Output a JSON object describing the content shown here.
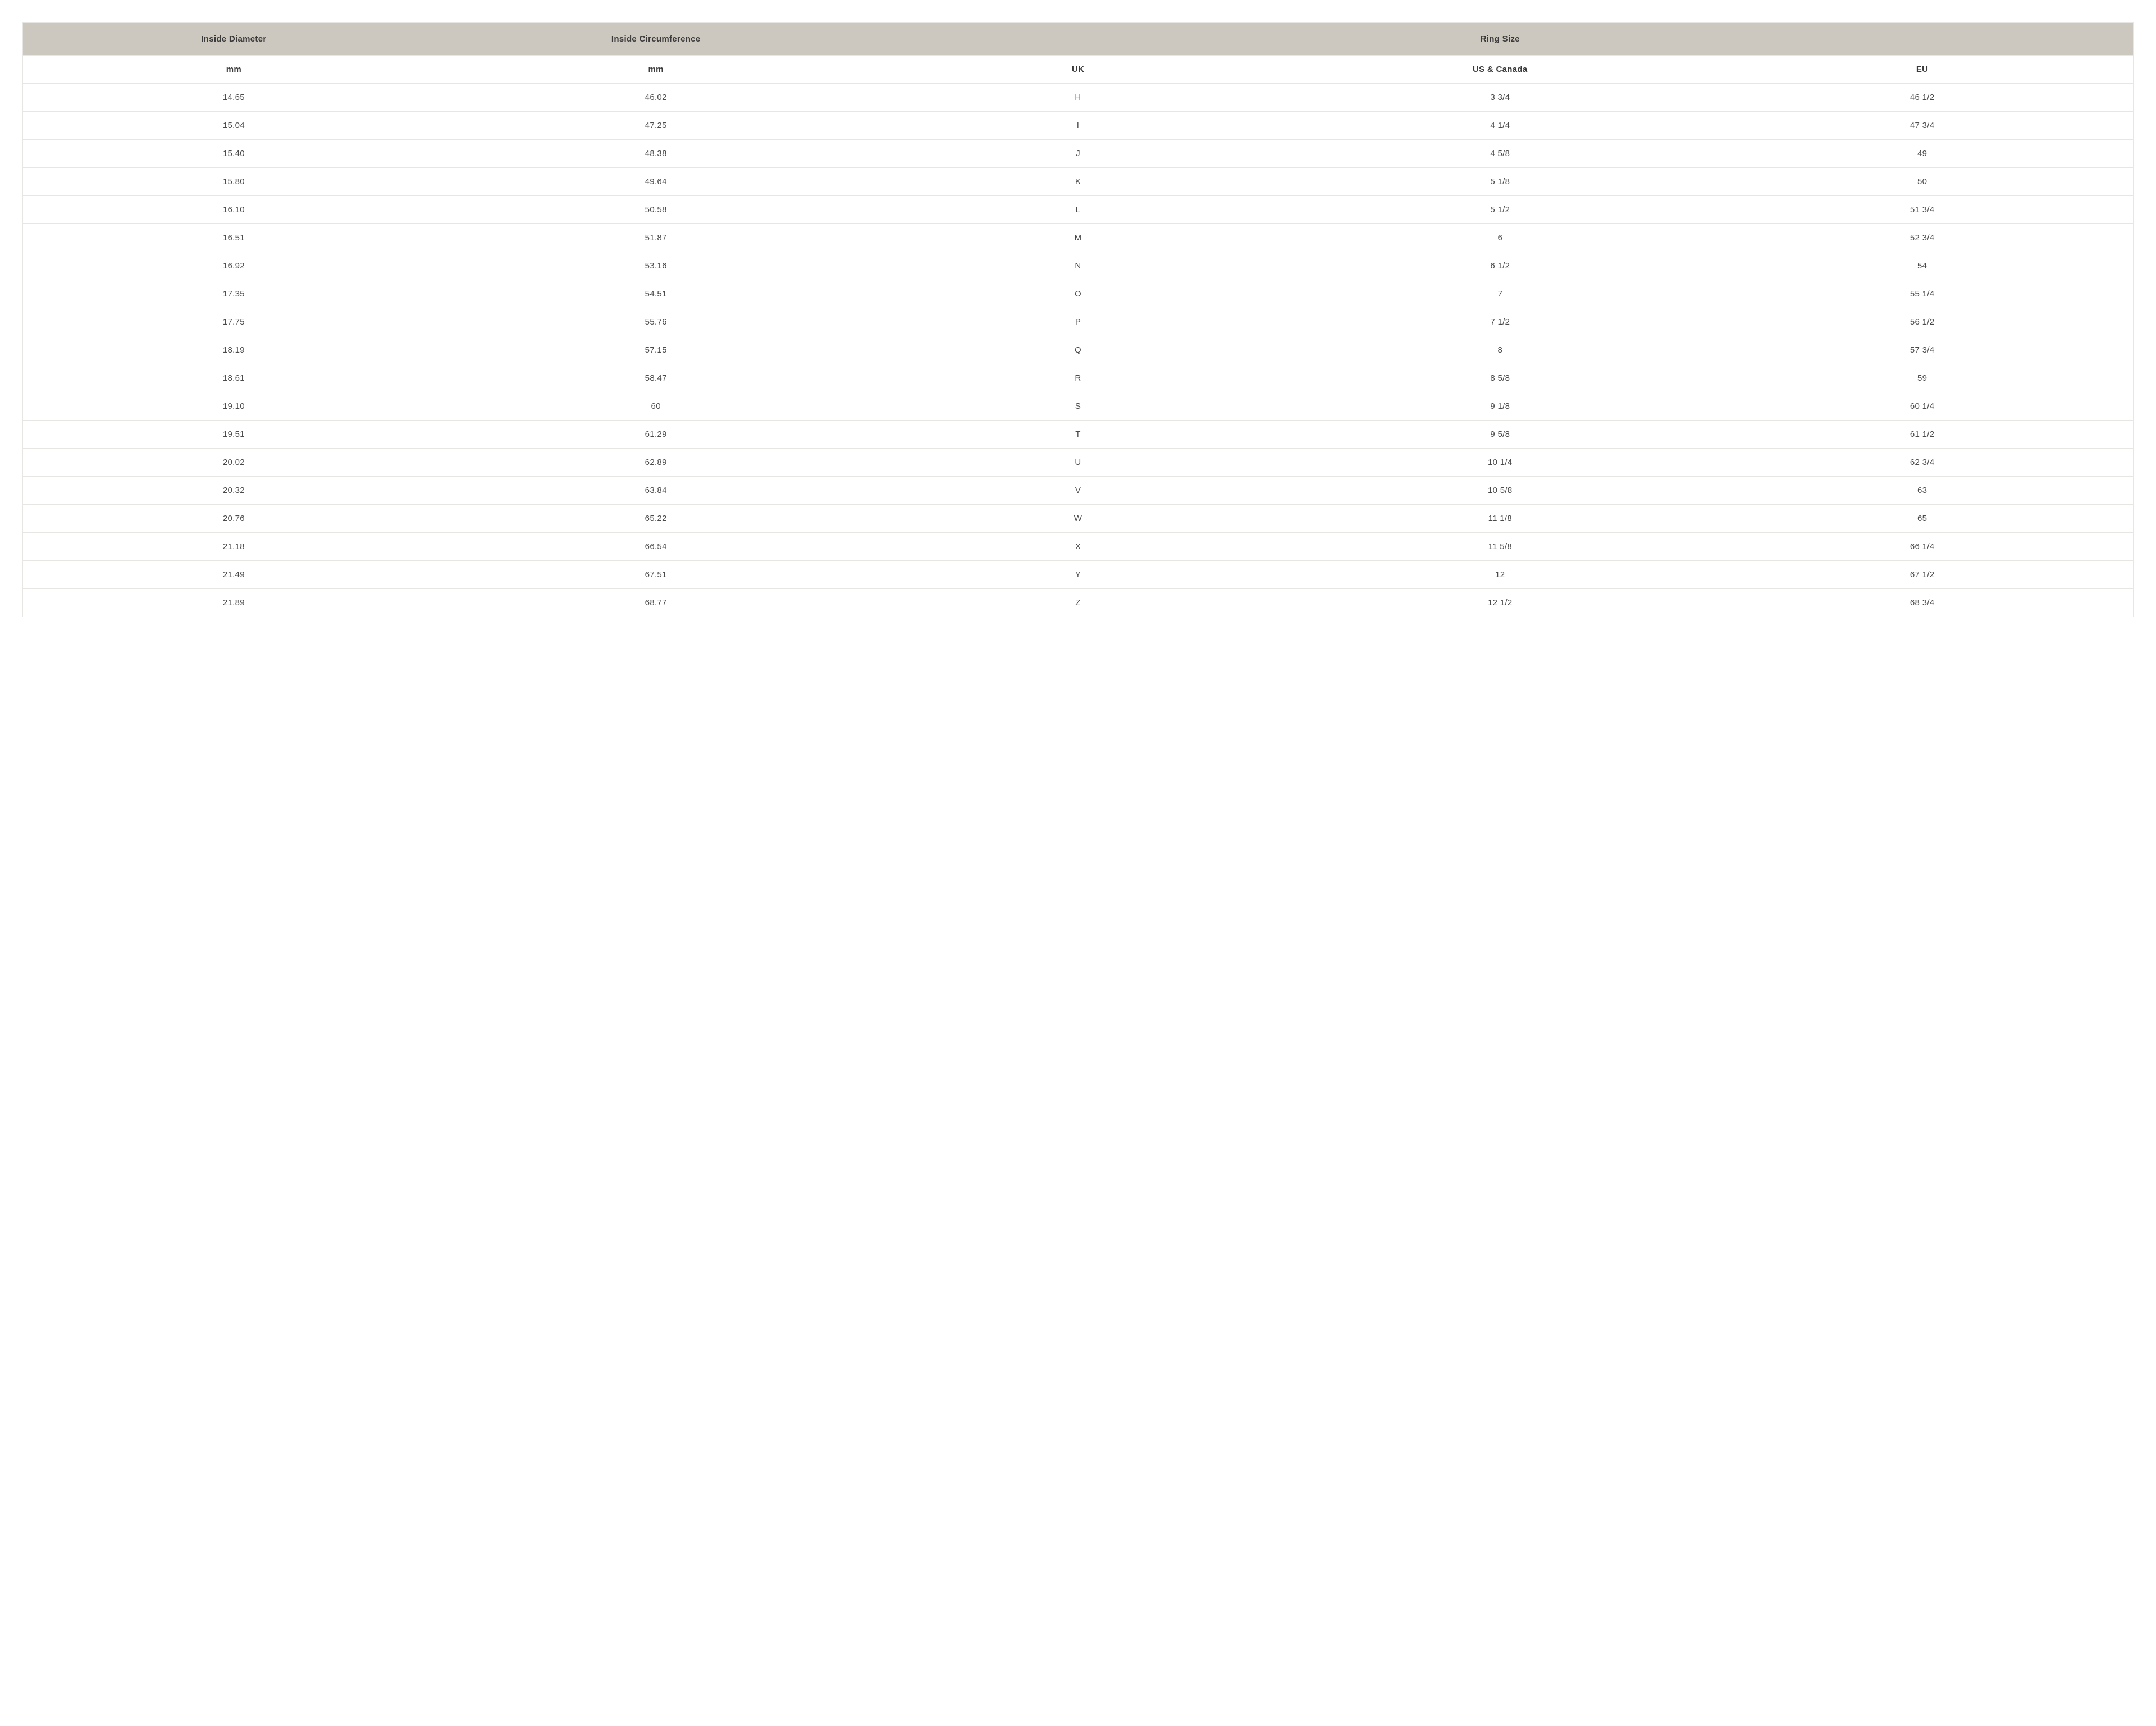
{
  "table": {
    "type": "table",
    "colors": {
      "header_bg": "#cdc8bf",
      "border": "#e8e6e3",
      "text": "#4a4a4a",
      "header_text": "#3a3a3a",
      "body_bg": "#ffffff"
    },
    "font_sizes": {
      "header": 15,
      "subheader": 15,
      "cell": 15
    },
    "col_count": 5,
    "top_headers": [
      {
        "label": "Inside Diameter",
        "colspan": 1
      },
      {
        "label": "Inside Circumference",
        "colspan": 1
      },
      {
        "label": "Ring Size",
        "colspan": 3
      }
    ],
    "sub_headers": [
      "mm",
      "mm",
      "UK",
      "US & Canada",
      "EU"
    ],
    "rows": [
      [
        "14.65",
        "46.02",
        "H",
        "3 3/4",
        "46 1/2"
      ],
      [
        "15.04",
        "47.25",
        "I",
        "4 1/4",
        "47 3/4"
      ],
      [
        "15.40",
        "48.38",
        "J",
        "4 5/8",
        "49"
      ],
      [
        "15.80",
        "49.64",
        "K",
        "5 1/8",
        "50"
      ],
      [
        "16.10",
        "50.58",
        "L",
        "5 1/2",
        "51 3/4"
      ],
      [
        "16.51",
        "51.87",
        "M",
        "6",
        "52 3/4"
      ],
      [
        "16.92",
        "53.16",
        "N",
        "6 1/2",
        "54"
      ],
      [
        "17.35",
        "54.51",
        "O",
        "7",
        "55 1/4"
      ],
      [
        "17.75",
        "55.76",
        "P",
        "7 1/2",
        "56 1/2"
      ],
      [
        "18.19",
        "57.15",
        "Q",
        "8",
        "57 3/4"
      ],
      [
        "18.61",
        "58.47",
        "R",
        "8 5/8",
        "59"
      ],
      [
        "19.10",
        "60",
        "S",
        "9 1/8",
        "60 1/4"
      ],
      [
        "19.51",
        "61.29",
        "T",
        "9 5/8",
        "61 1/2"
      ],
      [
        "20.02",
        "62.89",
        "U",
        "10 1/4",
        "62 3/4"
      ],
      [
        "20.32",
        "63.84",
        "V",
        "10 5/8",
        "63"
      ],
      [
        "20.76",
        "65.22",
        "W",
        "11 1/8",
        "65"
      ],
      [
        "21.18",
        "66.54",
        "X",
        "11 5/8",
        "66 1/4"
      ],
      [
        "21.49",
        "67.51",
        "Y",
        "12",
        "67 1/2"
      ],
      [
        "21.89",
        "68.77",
        "Z",
        "12 1/2",
        "68 3/4"
      ]
    ]
  }
}
